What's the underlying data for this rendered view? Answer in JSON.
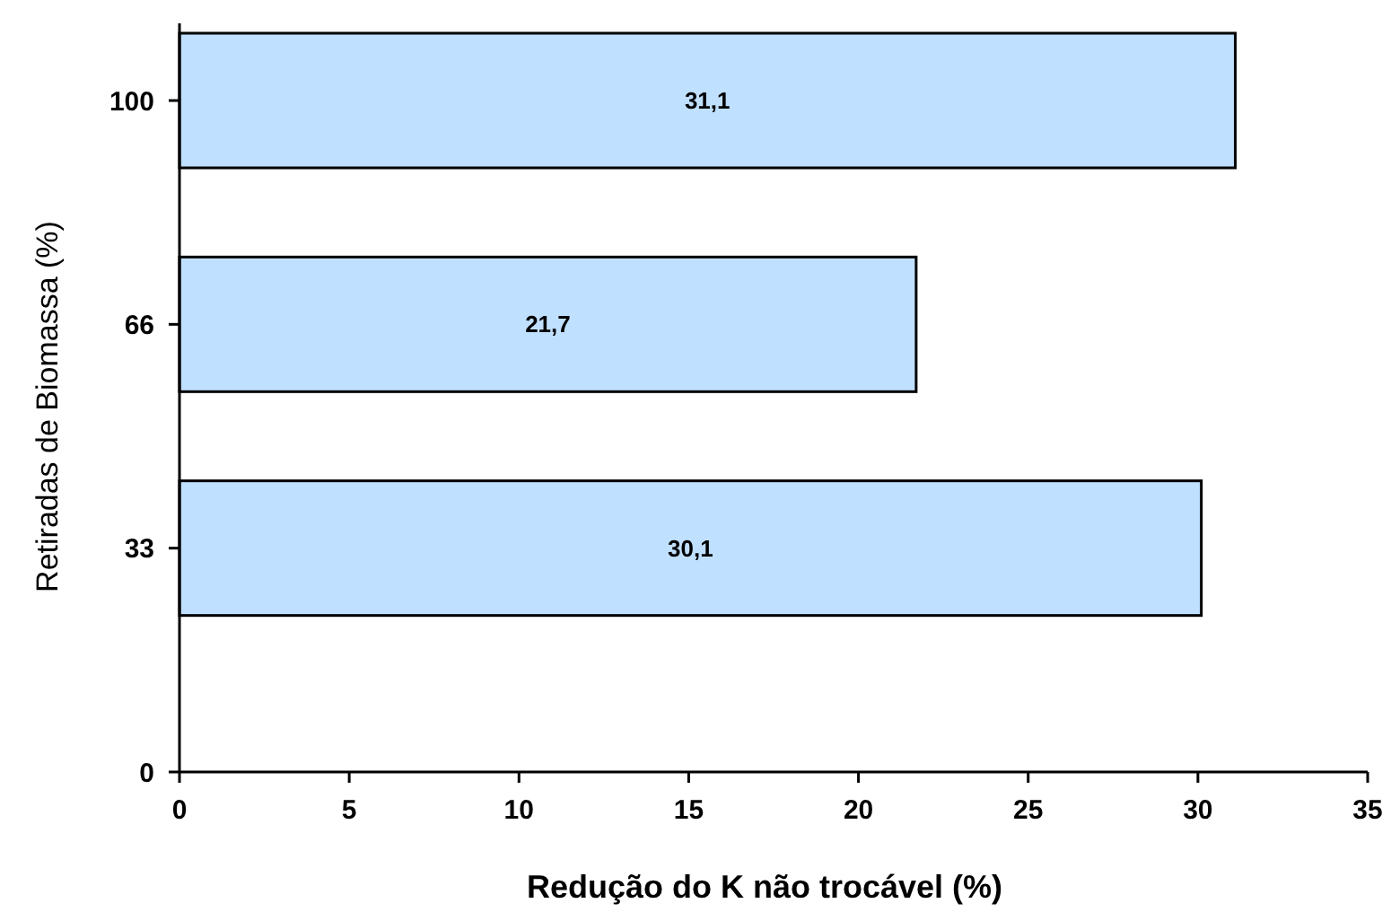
{
  "chart_data": {
    "type": "bar",
    "orientation": "horizontal",
    "xlabel": "Redução do K não trocável (%)",
    "ylabel": "Retiradas de Biomassa (%)",
    "categories": [
      "100",
      "66",
      "33",
      "0"
    ],
    "values": [
      31.1,
      21.7,
      30.1,
      null
    ],
    "value_labels": [
      "31,1",
      "21,7",
      "30,1",
      null
    ],
    "color": "#c0e0ff",
    "xlim": [
      0,
      35
    ],
    "xticks": [
      0,
      5,
      10,
      15,
      20,
      25,
      30,
      35
    ],
    "grid": false
  }
}
